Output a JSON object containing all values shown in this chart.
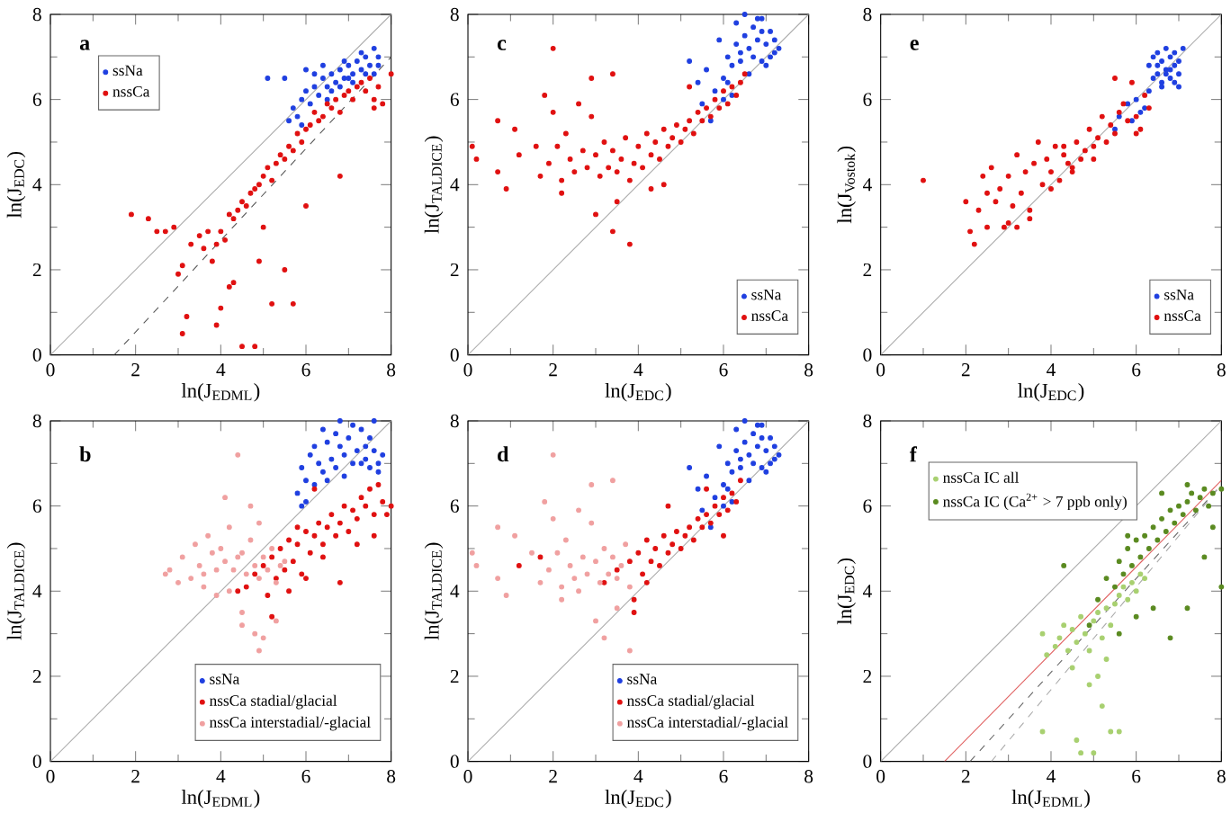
{
  "chart_data": [
    {
      "type": "scatter",
      "annotations": [
        "a"
      ],
      "xlabel": "ln(J$_{EDML}$)",
      "ylabel": "ln(J$_{EDC}$)",
      "xlim": [
        0,
        8
      ],
      "ylim": [
        0,
        8
      ],
      "xticks": [
        0,
        2,
        4,
        6,
        8
      ],
      "yticks": [
        0,
        2,
        4,
        6,
        8
      ],
      "legend": "top left",
      "marker": "circle",
      "series": [
        {
          "name": "ssNa",
          "color": "#1f3fe0",
          "x": [
            5.6,
            5.7,
            5.8,
            5.9,
            6.0,
            6.1,
            6.2,
            6.3,
            6.4,
            6.5,
            6.6,
            6.7,
            6.8,
            6.9,
            7.0,
            7.1,
            7.2,
            7.3,
            7.4,
            7.5,
            7.6,
            7.7,
            5.9,
            6.2,
            6.5,
            6.8,
            7.1,
            7.4,
            7.7,
            6.0,
            6.4,
            6.9,
            7.3,
            7.6,
            6.6,
            7.0,
            5.1,
            5.5
          ],
          "values": [
            5.5,
            5.8,
            5.6,
            6.0,
            6.2,
            5.9,
            6.3,
            6.1,
            6.5,
            6.3,
            6.6,
            6.4,
            6.7,
            6.5,
            6.8,
            6.6,
            6.9,
            6.7,
            7.0,
            6.8,
            7.2,
            7.0,
            5.4,
            6.6,
            6.0,
            6.3,
            6.4,
            6.6,
            6.8,
            6.7,
            6.8,
            6.9,
            7.1,
            6.6,
            6.2,
            6.5,
            6.5,
            6.5
          ]
        },
        {
          "name": "nssCa",
          "color": "#e01010",
          "x": [
            1.9,
            2.3,
            2.5,
            2.7,
            2.9,
            3.1,
            3.3,
            3.5,
            3.6,
            3.7,
            3.8,
            3.9,
            4.0,
            4.1,
            4.2,
            4.3,
            4.4,
            4.5,
            4.6,
            4.7,
            4.8,
            4.9,
            5.0,
            5.1,
            5.2,
            5.3,
            5.4,
            5.5,
            5.6,
            5.7,
            5.8,
            5.9,
            6.0,
            6.1,
            6.2,
            6.3,
            6.4,
            6.5,
            6.6,
            6.7,
            6.8,
            6.9,
            7.0,
            7.1,
            7.2,
            7.3,
            7.4,
            7.5,
            7.6,
            7.7,
            7.8,
            8.0,
            3.1,
            3.2,
            3.9,
            4.0,
            4.2,
            4.5,
            4.8,
            4.9,
            5.2,
            5.7,
            3.0,
            4.3,
            5.0,
            5.5,
            6.0,
            6.8,
            7.6
          ],
          "values": [
            3.3,
            3.2,
            2.9,
            2.9,
            3.0,
            2.1,
            2.6,
            2.8,
            2.5,
            2.9,
            2.2,
            2.6,
            2.9,
            2.7,
            3.3,
            3.2,
            3.4,
            3.6,
            3.5,
            3.8,
            3.9,
            4.0,
            4.2,
            4.4,
            4.1,
            4.5,
            4.7,
            4.6,
            4.9,
            4.8,
            5.2,
            5.0,
            5.3,
            5.4,
            5.7,
            5.5,
            5.6,
            5.9,
            5.8,
            6.0,
            5.7,
            6.1,
            6.2,
            6.0,
            6.3,
            6.4,
            6.2,
            6.5,
            6.0,
            6.3,
            5.9,
            6.6,
            0.5,
            0.9,
            0.7,
            1.1,
            1.6,
            0.2,
            0.2,
            2.2,
            1.2,
            1.2,
            1.9,
            1.7,
            3.0,
            2.0,
            3.5,
            4.2,
            5.8
          ]
        },
        {
          "type": "line",
          "marker": "none",
          "color": "#aaaaaa",
          "line_style": "solid",
          "x": [
            0,
            8
          ],
          "values": [
            0,
            8
          ]
        },
        {
          "type": "line",
          "marker": "none",
          "color": "#555555",
          "line_style": "dashed",
          "x": [
            1.5,
            8
          ],
          "values": [
            0,
            7.0
          ]
        }
      ]
    },
    {
      "type": "scatter",
      "annotations": [
        "c"
      ],
      "xlabel": "ln(J$_{EDC}$)",
      "ylabel": "ln(J$_{TALDICE}$)",
      "xlim": [
        0,
        8
      ],
      "ylim": [
        0,
        8
      ],
      "xticks": [
        0,
        2,
        4,
        6,
        8
      ],
      "yticks": [
        0,
        2,
        4,
        6,
        8
      ],
      "legend": "bottom right",
      "marker": "circle",
      "series": [
        {
          "name": "ssNa",
          "color": "#1f3fe0",
          "x": [
            5.2,
            5.4,
            5.6,
            5.8,
            6.0,
            6.1,
            6.2,
            6.3,
            6.4,
            6.5,
            6.6,
            6.7,
            6.8,
            6.9,
            7.0,
            7.1,
            7.2,
            7.3,
            5.5,
            5.9,
            6.2,
            6.5,
            6.8,
            7.0,
            6.3,
            6.6,
            6.9,
            7.2,
            6.0,
            6.4,
            6.7,
            6.9,
            7.1,
            5.7,
            6.1
          ],
          "values": [
            6.9,
            6.4,
            6.7,
            6.2,
            6.5,
            7.0,
            6.8,
            7.3,
            6.9,
            7.5,
            7.2,
            7.7,
            7.4,
            7.9,
            7.3,
            7.6,
            7.1,
            7.2,
            5.9,
            7.4,
            6.1,
            8.0,
            7.9,
            6.8,
            7.8,
            6.6,
            6.9,
            7.4,
            6.0,
            7.1,
            7.0,
            7.6,
            7.0,
            5.5,
            6.4
          ]
        },
        {
          "name": "nssCa",
          "color": "#e01010",
          "x": [
            0.1,
            0.2,
            0.7,
            0.7,
            0.9,
            1.1,
            1.2,
            1.6,
            1.7,
            1.8,
            1.9,
            2.0,
            2.1,
            2.2,
            2.3,
            2.4,
            2.5,
            2.6,
            2.7,
            2.8,
            2.9,
            3.0,
            3.1,
            3.2,
            3.3,
            3.4,
            3.5,
            3.6,
            3.7,
            3.8,
            3.9,
            4.0,
            4.1,
            4.2,
            4.3,
            4.4,
            4.5,
            4.6,
            4.7,
            4.8,
            4.9,
            5.0,
            5.1,
            5.2,
            5.3,
            5.4,
            5.5,
            5.6,
            5.7,
            5.8,
            5.9,
            6.0,
            6.1,
            6.2,
            6.3,
            6.4,
            6.5,
            3.4,
            3.5,
            3.8,
            2.0,
            2.9,
            3.4,
            4.6,
            2.2,
            3.0,
            4.3,
            5.2
          ],
          "values": [
            4.9,
            4.6,
            5.5,
            4.3,
            3.9,
            5.3,
            4.7,
            4.9,
            4.2,
            6.1,
            4.5,
            7.2,
            4.9,
            3.8,
            5.2,
            4.6,
            4.3,
            5.9,
            4.8,
            4.4,
            5.6,
            4.7,
            4.2,
            5.0,
            4.4,
            4.8,
            4.3,
            4.6,
            5.1,
            4.1,
            4.5,
            4.9,
            4.4,
            5.2,
            4.7,
            5.0,
            4.6,
            5.3,
            4.9,
            5.1,
            5.4,
            5.0,
            5.3,
            5.5,
            5.2,
            5.7,
            5.5,
            5.8,
            5.6,
            6.0,
            5.8,
            6.2,
            5.9,
            6.3,
            6.1,
            6.4,
            6.6,
            2.9,
            3.6,
            2.6,
            5.7,
            6.5,
            6.6,
            4.0,
            4.1,
            3.3,
            3.9,
            6.3
          ]
        },
        {
          "type": "line",
          "marker": "none",
          "color": "#aaaaaa",
          "line_style": "solid",
          "x": [
            0,
            8
          ],
          "values": [
            0,
            8
          ]
        }
      ]
    },
    {
      "type": "scatter",
      "annotations": [
        "e"
      ],
      "xlabel": "ln(J$_{EDC}$)",
      "ylabel": "ln(J$_{Vostok}$)",
      "xlim": [
        0,
        8
      ],
      "ylim": [
        0,
        8
      ],
      "xticks": [
        0,
        2,
        4,
        6,
        8
      ],
      "yticks": [
        0,
        2,
        4,
        6,
        8
      ],
      "legend": "bottom right",
      "marker": "circle",
      "series": [
        {
          "name": "ssNa",
          "color": "#1f3fe0",
          "x": [
            6.3,
            6.4,
            6.5,
            6.5,
            6.6,
            6.6,
            6.7,
            6.7,
            6.8,
            6.8,
            6.9,
            6.9,
            7.0,
            7.0,
            7.1,
            6.4,
            6.6,
            6.8,
            7.0,
            6.7,
            6.5,
            6.9,
            5.6,
            5.8,
            5.9,
            6.0,
            6.1,
            6.2,
            5.5,
            6.3
          ],
          "values": [
            6.8,
            6.5,
            7.1,
            6.6,
            6.9,
            6.4,
            7.2,
            6.7,
            7.0,
            6.5,
            6.8,
            7.1,
            6.6,
            6.9,
            7.2,
            7.0,
            6.3,
            6.7,
            6.3,
            6.6,
            6.8,
            6.4,
            5.6,
            5.9,
            5.5,
            6.0,
            5.7,
            5.8,
            5.3,
            6.2
          ]
        },
        {
          "name": "nssCa",
          "color": "#e01010",
          "x": [
            1.0,
            2.0,
            2.1,
            2.2,
            2.3,
            2.4,
            2.5,
            2.6,
            2.7,
            2.8,
            2.9,
            3.0,
            3.1,
            3.2,
            3.3,
            3.4,
            3.5,
            3.6,
            3.7,
            3.8,
            3.9,
            4.0,
            4.1,
            4.2,
            4.3,
            4.4,
            4.5,
            4.6,
            4.7,
            4.8,
            4.9,
            5.0,
            5.1,
            5.2,
            5.3,
            5.4,
            5.5,
            5.6,
            5.7,
            5.8,
            5.9,
            6.0,
            6.1,
            6.2,
            6.3,
            2.5,
            3.0,
            3.5,
            4.0,
            4.5,
            5.0,
            5.5,
            6.0,
            3.2,
            4.3
          ],
          "values": [
            4.1,
            3.6,
            2.9,
            2.6,
            3.4,
            4.2,
            3.0,
            4.4,
            3.6,
            3.9,
            3.0,
            4.2,
            3.5,
            4.7,
            3.8,
            4.3,
            3.4,
            4.5,
            5.0,
            4.0,
            4.6,
            4.3,
            4.9,
            4.1,
            4.7,
            4.5,
            4.3,
            5.0,
            4.6,
            4.8,
            5.3,
            4.9,
            5.1,
            5.6,
            5.0,
            5.4,
            5.2,
            5.7,
            5.9,
            5.5,
            6.4,
            5.6,
            5.3,
            6.1,
            5.8,
            3.8,
            3.1,
            3.2,
            3.9,
            4.4,
            4.6,
            6.5,
            5.2,
            3.0,
            4.9
          ]
        },
        {
          "type": "line",
          "marker": "none",
          "color": "#aaaaaa",
          "line_style": "solid",
          "x": [
            0,
            8
          ],
          "values": [
            0,
            8
          ]
        }
      ]
    },
    {
      "type": "scatter",
      "annotations": [
        "b"
      ],
      "xlabel": "ln(J$_{EDML}$)",
      "ylabel": "ln(J$_{TALDICE}$)",
      "xlim": [
        0,
        8
      ],
      "ylim": [
        0,
        8
      ],
      "xticks": [
        0,
        2,
        4,
        6,
        8
      ],
      "yticks": [
        0,
        2,
        4,
        6,
        8
      ],
      "legend": "bottom right",
      "marker": "circle",
      "series": [
        {
          "name": "ssNa",
          "color": "#1f3fe0",
          "x": [
            5.8,
            5.9,
            6.0,
            6.1,
            6.2,
            6.3,
            6.4,
            6.5,
            6.6,
            6.7,
            6.8,
            6.9,
            7.0,
            7.1,
            7.2,
            7.3,
            7.4,
            7.5,
            7.6,
            7.7,
            7.8,
            5.9,
            6.2,
            6.5,
            6.8,
            7.1,
            7.4,
            7.7,
            6.0,
            6.4,
            6.9,
            7.3,
            7.6,
            6.7,
            7.5
          ],
          "values": [
            6.3,
            6.9,
            6.1,
            7.2,
            6.5,
            7.0,
            6.8,
            7.5,
            7.1,
            6.9,
            7.4,
            7.2,
            7.6,
            7.0,
            7.3,
            7.8,
            7.1,
            7.6,
            7.3,
            7.0,
            7.2,
            6.0,
            7.4,
            6.6,
            8.0,
            7.9,
            7.4,
            6.8,
            6.6,
            7.8,
            6.7,
            7.0,
            8.0,
            7.7,
            6.9
          ]
        },
        {
          "name": "nssCa stadial/glacial",
          "color": "#e01010",
          "x": [
            4.4,
            4.6,
            4.8,
            5.0,
            5.1,
            5.2,
            5.3,
            5.4,
            5.5,
            5.6,
            5.7,
            5.8,
            5.9,
            6.0,
            6.1,
            6.2,
            6.3,
            6.4,
            6.5,
            6.6,
            6.7,
            6.8,
            6.9,
            7.0,
            7.1,
            7.2,
            7.3,
            7.4,
            7.5,
            7.6,
            7.7,
            7.8,
            7.9,
            8.0,
            5.6,
            6.0,
            6.4,
            6.8,
            7.2,
            7.6,
            5.2,
            6.2,
            5.8
          ],
          "values": [
            4.0,
            4.1,
            4.4,
            4.6,
            3.9,
            4.8,
            4.3,
            5.0,
            4.5,
            5.2,
            4.7,
            5.1,
            4.4,
            5.4,
            4.9,
            5.3,
            5.6,
            5.1,
            5.5,
            5.8,
            5.3,
            5.6,
            6.0,
            5.4,
            5.9,
            5.7,
            6.2,
            6.0,
            6.4,
            5.8,
            6.5,
            6.1,
            5.8,
            6.0,
            4.0,
            4.3,
            4.8,
            4.2,
            5.1,
            5.3,
            3.4,
            6.4,
            5.5
          ]
        },
        {
          "name": "nssCa interstadial/-glacial",
          "color": "#f0a0a0",
          "x": [
            2.7,
            2.8,
            3.0,
            3.1,
            3.3,
            3.4,
            3.5,
            3.6,
            3.7,
            3.8,
            3.9,
            4.0,
            4.1,
            4.2,
            4.3,
            4.4,
            4.5,
            4.6,
            4.7,
            4.8,
            4.9,
            5.0,
            5.1,
            5.2,
            5.3,
            5.4,
            5.5,
            4.1,
            4.4,
            4.7,
            4.9,
            3.6,
            3.9,
            4.2,
            4.5,
            4.8,
            5.0,
            4.5,
            4.9,
            5.3
          ],
          "values": [
            4.4,
            4.5,
            4.2,
            4.8,
            4.3,
            5.1,
            4.6,
            4.4,
            5.3,
            4.9,
            4.5,
            5.0,
            4.7,
            5.5,
            4.5,
            4.8,
            4.9,
            4.4,
            5.2,
            4.6,
            4.3,
            4.8,
            4.5,
            5.0,
            4.2,
            4.6,
            4.7,
            6.2,
            7.2,
            6.0,
            5.6,
            4.1,
            3.9,
            4.0,
            3.5,
            3.0,
            2.9,
            3.2,
            2.6,
            3.3
          ]
        },
        {
          "type": "line",
          "marker": "none",
          "color": "#aaaaaa",
          "line_style": "solid",
          "x": [
            0,
            8
          ],
          "values": [
            0,
            8
          ]
        }
      ]
    },
    {
      "type": "scatter",
      "annotations": [
        "d"
      ],
      "xlabel": "ln(J$_{EDC}$)",
      "ylabel": "ln(J$_{TALDICE}$)",
      "xlim": [
        0,
        8
      ],
      "ylim": [
        0,
        8
      ],
      "xticks": [
        0,
        2,
        4,
        6,
        8
      ],
      "yticks": [
        0,
        2,
        4,
        6,
        8
      ],
      "legend": "bottom right",
      "marker": "circle",
      "series": [
        {
          "name": "ssNa",
          "color": "#1f3fe0",
          "x": [
            5.2,
            5.4,
            5.6,
            5.8,
            6.0,
            6.1,
            6.2,
            6.3,
            6.4,
            6.5,
            6.6,
            6.7,
            6.8,
            6.9,
            7.0,
            7.1,
            7.2,
            7.3,
            5.5,
            5.9,
            6.2,
            6.5,
            6.8,
            7.0,
            6.3,
            6.6,
            6.9,
            7.2,
            6.0,
            6.4,
            6.7,
            6.9,
            7.1,
            5.7,
            6.1
          ],
          "values": [
            6.9,
            6.4,
            6.7,
            6.2,
            6.5,
            7.0,
            6.8,
            7.3,
            6.9,
            7.5,
            7.2,
            7.7,
            7.4,
            7.9,
            7.3,
            7.6,
            7.1,
            7.2,
            5.9,
            7.4,
            6.1,
            8.0,
            7.9,
            6.8,
            7.8,
            6.6,
            6.9,
            7.4,
            6.0,
            7.1,
            7.0,
            7.6,
            7.0,
            5.5,
            6.4
          ]
        },
        {
          "name": "nssCa stadial/glacial",
          "color": "#e01010",
          "x": [
            3.2,
            3.5,
            3.8,
            3.9,
            4.0,
            4.1,
            4.2,
            4.3,
            4.4,
            4.5,
            4.6,
            4.7,
            4.8,
            4.9,
            5.0,
            5.1,
            5.2,
            5.3,
            5.4,
            5.5,
            5.6,
            5.7,
            5.8,
            5.9,
            6.0,
            6.1,
            6.2,
            6.3,
            6.4,
            1.2,
            1.7,
            4.7,
            4.2,
            3.9,
            5.6,
            6.0
          ],
          "values": [
            4.2,
            4.5,
            4.7,
            3.8,
            4.9,
            4.4,
            5.2,
            4.7,
            5.0,
            4.6,
            5.3,
            4.9,
            5.1,
            5.4,
            5.0,
            5.3,
            5.5,
            5.2,
            5.7,
            5.5,
            5.8,
            5.6,
            6.0,
            5.8,
            6.2,
            5.9,
            6.3,
            6.1,
            6.6,
            4.6,
            4.8,
            6.0,
            4.2,
            3.5,
            6.4,
            5.3
          ]
        },
        {
          "name": "nssCa interstadial/-glacial",
          "color": "#f0a0a0",
          "x": [
            0.1,
            0.2,
            0.7,
            0.7,
            0.9,
            1.1,
            1.5,
            1.7,
            1.8,
            1.9,
            2.0,
            2.1,
            2.2,
            2.3,
            2.4,
            2.5,
            2.6,
            2.7,
            2.8,
            2.9,
            3.0,
            3.1,
            3.2,
            3.3,
            3.4,
            3.5,
            3.6,
            3.7,
            3.8,
            2.0,
            2.9,
            3.4,
            3.5,
            3.8,
            2.2,
            3.0,
            2.6,
            3.2
          ],
          "values": [
            4.9,
            4.6,
            5.5,
            4.3,
            3.9,
            5.3,
            4.9,
            4.2,
            6.1,
            4.5,
            7.2,
            4.9,
            3.8,
            5.2,
            4.6,
            4.3,
            5.9,
            4.8,
            4.4,
            5.6,
            4.7,
            4.2,
            5.0,
            4.4,
            4.8,
            4.3,
            4.6,
            5.1,
            4.1,
            5.7,
            6.5,
            6.6,
            3.6,
            2.6,
            4.1,
            3.3,
            4.0,
            2.9
          ]
        },
        {
          "type": "line",
          "marker": "none",
          "color": "#aaaaaa",
          "line_style": "solid",
          "x": [
            0,
            8
          ],
          "values": [
            0,
            8
          ]
        }
      ]
    },
    {
      "type": "scatter",
      "annotations": [
        "f"
      ],
      "xlabel": "ln(J$_{EDML}$)",
      "ylabel": "ln(J$_{EDC}$)",
      "xlim": [
        0,
        8
      ],
      "ylim": [
        0,
        8
      ],
      "xticks": [
        0,
        2,
        4,
        6,
        8
      ],
      "yticks": [
        0,
        2,
        4,
        6,
        8
      ],
      "legend": "top left",
      "marker": "circle",
      "series": [
        {
          "name": "nssCa IC all",
          "color": "#a8d070",
          "x": [
            3.8,
            3.9,
            4.1,
            4.2,
            4.3,
            4.4,
            4.5,
            4.6,
            4.7,
            4.8,
            4.9,
            5.0,
            5.1,
            5.2,
            5.3,
            5.4,
            5.5,
            5.6,
            5.7,
            5.8,
            5.9,
            6.0,
            6.1,
            6.2,
            4.5,
            4.9,
            5.2,
            5.4,
            4.6,
            5.0,
            5.6,
            3.8,
            4.7,
            5.1,
            5.3
          ],
          "values": [
            3.0,
            2.5,
            2.7,
            2.9,
            3.2,
            2.6,
            3.1,
            2.8,
            3.4,
            3.0,
            2.6,
            3.3,
            3.5,
            2.9,
            3.6,
            3.2,
            3.7,
            3.9,
            4.1,
            3.8,
            4.2,
            4.0,
            4.4,
            4.3,
            2.2,
            1.8,
            1.3,
            0.7,
            0.5,
            0.2,
            0.7,
            0.7,
            0.2,
            2.0,
            2.4
          ]
        },
        {
          "name": "nssCa IC (Ca$^{2+}$ > 7 ppb only)",
          "color": "#5a8a20",
          "x": [
            4.3,
            4.9,
            5.1,
            5.3,
            5.5,
            5.6,
            5.7,
            5.8,
            5.9,
            6.0,
            6.1,
            6.2,
            6.3,
            6.4,
            6.5,
            6.6,
            6.7,
            6.8,
            6.9,
            7.0,
            7.1,
            7.2,
            7.3,
            7.4,
            7.5,
            7.6,
            7.7,
            7.8,
            8.0,
            8.0,
            5.6,
            6.0,
            6.4,
            6.8,
            7.2,
            7.6,
            5.8,
            6.6,
            7.2,
            7.8
          ],
          "values": [
            4.6,
            3.2,
            3.8,
            4.3,
            4.1,
            4.7,
            4.4,
            5.0,
            4.6,
            5.2,
            4.8,
            5.3,
            5.0,
            5.5,
            5.2,
            5.7,
            5.4,
            5.9,
            5.6,
            6.0,
            5.8,
            6.1,
            6.3,
            5.9,
            6.2,
            6.4,
            6.0,
            6.3,
            6.4,
            4.1,
            3.0,
            3.4,
            3.6,
            2.9,
            3.6,
            4.8,
            5.3,
            6.3,
            6.5,
            5.5
          ]
        },
        {
          "type": "line",
          "marker": "none",
          "color": "#aaaaaa",
          "line_style": "solid",
          "x": [
            0,
            8
          ],
          "values": [
            0,
            8
          ]
        },
        {
          "type": "line",
          "marker": "none",
          "color": "#e06060",
          "line_style": "solid",
          "x": [
            1.5,
            8
          ],
          "values": [
            0,
            6.6
          ]
        },
        {
          "type": "line",
          "marker": "none",
          "color": "#666666",
          "line_style": "dashed",
          "x": [
            2.1,
            8
          ],
          "values": [
            0,
            6.5
          ]
        },
        {
          "type": "line",
          "marker": "none",
          "color": "#aaaaaa",
          "line_style": "dashed",
          "x": [
            2.6,
            8
          ],
          "values": [
            0,
            6.5
          ]
        }
      ]
    }
  ]
}
